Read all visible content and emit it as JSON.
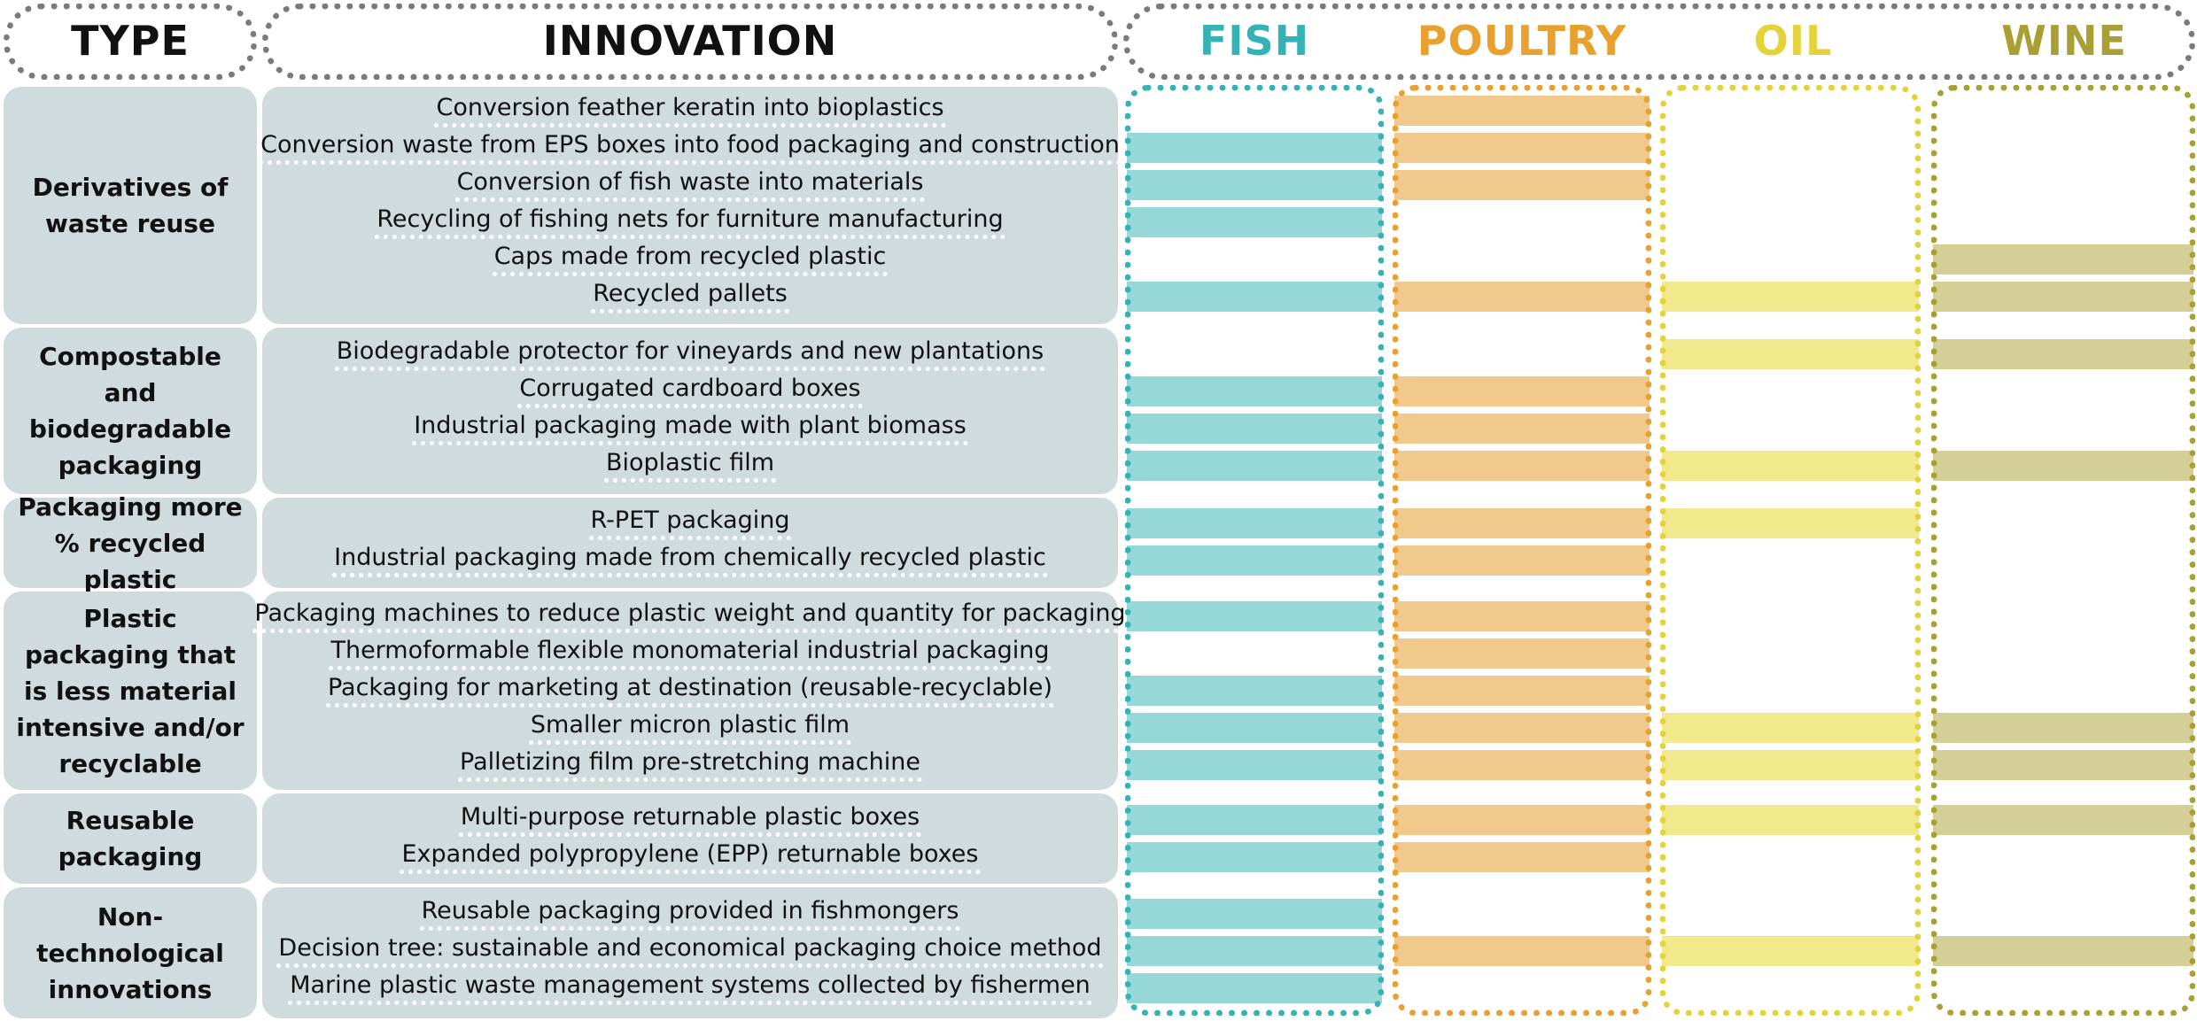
{
  "headers": {
    "type": "TYPE",
    "innovation": "INNOVATION",
    "products": [
      {
        "key": "fish",
        "label": "FISH",
        "color": "#35b2b5",
        "bar_color": "#96d7d8"
      },
      {
        "key": "poultry",
        "label": "POULTRY",
        "color": "#e8a02e",
        "bar_color": "#f2c98d"
      },
      {
        "key": "oil",
        "label": "OIL",
        "color": "#e3d23a",
        "bar_color": "#f2e88c"
      },
      {
        "key": "wine",
        "label": "WINE",
        "color": "#a99f34",
        "bar_color": "#d4cf97"
      }
    ]
  },
  "groups": [
    {
      "type": "Derivatives of waste reuse",
      "rows": [
        {
          "innovation": "Conversion feather keratin into bioplastics",
          "fish": false,
          "poultry": true,
          "oil": false,
          "wine": false
        },
        {
          "innovation": "Conversion waste from EPS boxes into food packaging and construction",
          "fish": true,
          "poultry": true,
          "oil": false,
          "wine": false
        },
        {
          "innovation": "Conversion of fish waste into materials",
          "fish": true,
          "poultry": true,
          "oil": false,
          "wine": false
        },
        {
          "innovation": "Recycling of fishing nets for furniture manufacturing",
          "fish": true,
          "poultry": false,
          "oil": false,
          "wine": false
        },
        {
          "innovation": "Caps made from recycled plastic",
          "fish": false,
          "poultry": false,
          "oil": false,
          "wine": true
        },
        {
          "innovation": "Recycled pallets",
          "fish": true,
          "poultry": true,
          "oil": true,
          "wine": true
        }
      ]
    },
    {
      "type": "Compostable and biodegradable packaging",
      "rows": [
        {
          "innovation": "Biodegradable protector for vineyards and new plantations",
          "fish": false,
          "poultry": false,
          "oil": true,
          "wine": true
        },
        {
          "innovation": "Corrugated cardboard boxes",
          "fish": true,
          "poultry": true,
          "oil": false,
          "wine": false
        },
        {
          "innovation": "Industrial packaging made with plant biomass",
          "fish": true,
          "poultry": true,
          "oil": false,
          "wine": false
        },
        {
          "innovation": "Bioplastic film",
          "fish": true,
          "poultry": true,
          "oil": true,
          "wine": true
        }
      ]
    },
    {
      "type": "Packaging more % recycled plastic",
      "rows": [
        {
          "innovation": "R-PET packaging",
          "fish": true,
          "poultry": true,
          "oil": true,
          "wine": false
        },
        {
          "innovation": "Industrial packaging made from chemically recycled plastic",
          "fish": true,
          "poultry": true,
          "oil": false,
          "wine": false
        }
      ]
    },
    {
      "type": "Plastic packaging that is less material intensive and/or recyclable",
      "rows": [
        {
          "innovation": "Packaging machines to reduce plastic weight and quantity for packaging",
          "fish": true,
          "poultry": true,
          "oil": false,
          "wine": false
        },
        {
          "innovation": "Thermoformable flexible monomaterial industrial packaging",
          "fish": false,
          "poultry": true,
          "oil": false,
          "wine": false
        },
        {
          "innovation": "Packaging for marketing at destination (reusable-recyclable)",
          "fish": true,
          "poultry": true,
          "oil": false,
          "wine": false
        },
        {
          "innovation": "Smaller micron plastic film",
          "fish": true,
          "poultry": true,
          "oil": true,
          "wine": true
        },
        {
          "innovation": "Palletizing film pre-stretching machine",
          "fish": true,
          "poultry": true,
          "oil": true,
          "wine": true
        }
      ]
    },
    {
      "type": "Reusable packaging",
      "rows": [
        {
          "innovation": "Multi-purpose returnable plastic boxes",
          "fish": true,
          "poultry": true,
          "oil": true,
          "wine": true
        },
        {
          "innovation": "Expanded polypropylene (EPP) returnable boxes",
          "fish": true,
          "poultry": true,
          "oil": false,
          "wine": false
        }
      ]
    },
    {
      "type": "Non-technological innovations",
      "rows": [
        {
          "innovation": "Reusable packaging provided in fishmongers",
          "fish": true,
          "poultry": false,
          "oil": false,
          "wine": false
        },
        {
          "innovation": "Decision tree: sustainable and economical packaging choice method",
          "fish": true,
          "poultry": true,
          "oil": true,
          "wine": true
        },
        {
          "innovation": "Marine plastic waste management systems collected by fishermen",
          "fish": true,
          "poultry": false,
          "oil": false,
          "wine": false
        }
      ]
    }
  ]
}
